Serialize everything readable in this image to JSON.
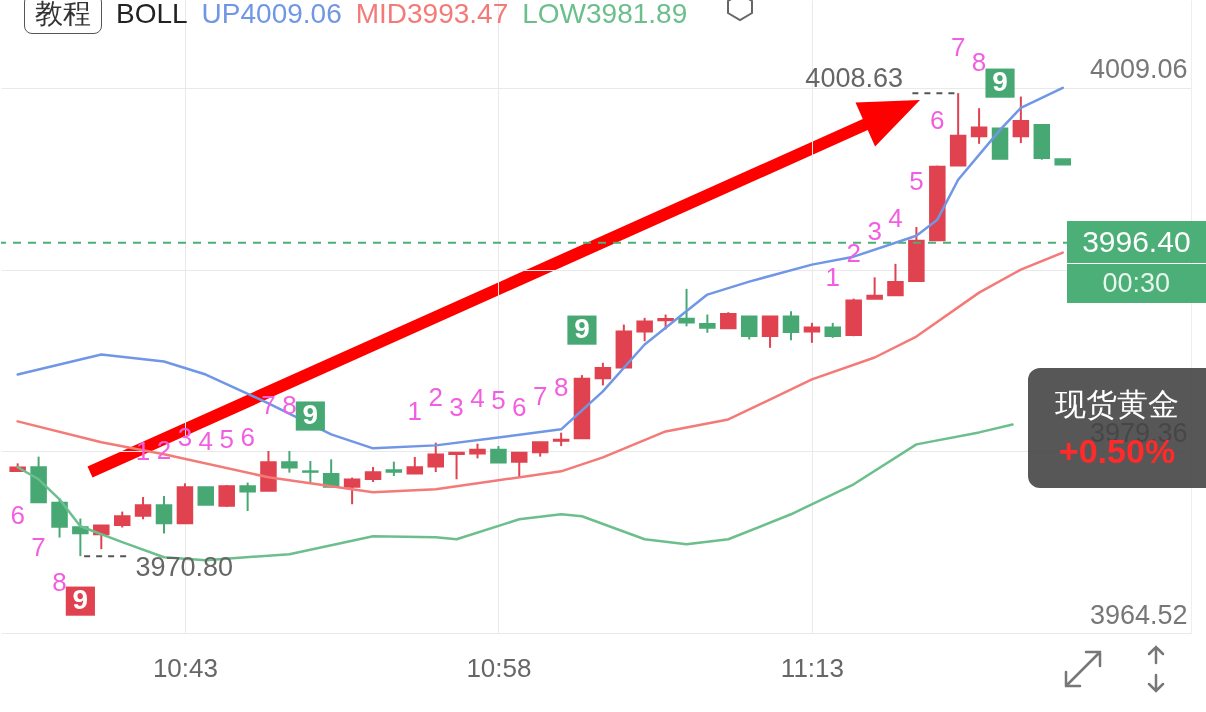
{
  "chart_data": {
    "type": "candlestick",
    "legend_title": "BOLL",
    "grid": true,
    "x": [
      10.5833,
      10.6,
      10.6167,
      10.6333,
      10.65,
      10.6667,
      10.6833,
      10.7,
      10.7167,
      10.7333,
      10.75,
      10.7667,
      10.7833,
      10.8,
      10.8167,
      10.8333,
      10.85,
      10.8667,
      10.8833,
      10.9,
      10.9167,
      10.9333,
      10.95,
      10.9667,
      10.9833,
      11,
      11.0167,
      11.0333,
      11.05,
      11.0667,
      11.0833,
      11.1,
      11.1167,
      11.1333,
      11.15,
      11.1667,
      11.1833,
      11.2,
      11.2167,
      11.2333,
      11.25,
      11.2667,
      11.2833,
      11.3,
      11.3167,
      11.3333,
      11.35,
      11.3667,
      11.3833,
      11.4,
      11.4167
    ],
    "ohlc": [
      [
        3977.73,
        3978.38,
        3977.73,
        3978.06
      ],
      [
        3978.08,
        3978.93,
        3975.18,
        3975.18
      ],
      [
        3975.18,
        3975.53,
        3972.32,
        3973.19
      ],
      [
        3973.19,
        3973.87,
        3970.8,
        3972.65
      ],
      [
        3972.56,
        3973.32,
        3971.37,
        3973.32
      ],
      [
        3973.32,
        3974.44,
        3973.14,
        3974.08
      ],
      [
        3974.08,
        3975.63,
        3973.81,
        3974.98
      ],
      [
        3974.98,
        3975.71,
        3972.65,
        3973.46
      ],
      [
        3973.46,
        3976.75,
        3973.46,
        3976.45
      ],
      [
        3976.45,
        3976.45,
        3974.98,
        3974.98
      ],
      [
        3974.9,
        3976.61,
        3974.82,
        3976.53
      ],
      [
        3976.53,
        3976.81,
        3974.49,
        3976.07
      ],
      [
        3976.12,
        3979.39,
        3976.12,
        3978.49
      ],
      [
        3978.49,
        3979.39,
        3977.62,
        3978.03
      ],
      [
        3977.75,
        3978.57,
        3976.75,
        3977.67
      ],
      [
        3977.54,
        3978.71,
        3976.45,
        3976.45
      ],
      [
        3976.45,
        3977.22,
        3975.04,
        3977.08
      ],
      [
        3977.08,
        3978.08,
        3976.86,
        3977.67
      ],
      [
        3977.84,
        3978.52,
        3977.35,
        3977.67
      ],
      [
        3977.54,
        3978.9,
        3977.54,
        3978.08
      ],
      [
        3978.11,
        3980.07,
        3977.67,
        3979.12
      ],
      [
        3979.12,
        3979.26,
        3977.08,
        3979.26
      ],
      [
        3979.17,
        3979.99,
        3978.79,
        3979.52
      ],
      [
        3979.52,
        3979.79,
        3978.44,
        3978.44
      ],
      [
        3978.49,
        3979.26,
        3977.22,
        3979.26
      ],
      [
        3979.26,
        3980.12,
        3978.93,
        3980.12
      ],
      [
        3980.2,
        3980.89,
        3979.79,
        3980.34
      ],
      [
        3980.42,
        3985.59,
        3980.42,
        3985.32
      ],
      [
        3985.32,
        3986.6,
        3984.75,
        3986.19
      ],
      [
        3986.19,
        3989.72,
        3986.19,
        3989.18
      ],
      [
        3989.13,
        3990.27,
        3988.36,
        3989.99
      ],
      [
        3990.05,
        3990.54,
        3989.32,
        3990.19
      ],
      [
        3990.21,
        3992.64,
        3989.58,
        3989.86
      ],
      [
        3989.78,
        3990.54,
        3989.05,
        3989.45
      ],
      [
        3989.4,
        3990.73,
        3989.4,
        3990.6
      ],
      [
        3990.4,
        3990.4,
        3988.5,
        3988.77
      ],
      [
        3988.77,
        3990.4,
        3987.82,
        3990.4
      ],
      [
        3990.4,
        3990.81,
        3988.44,
        3989.1
      ],
      [
        3989.13,
        3989.86,
        3988.23,
        3989.5
      ],
      [
        3989.5,
        3989.86,
        3988.64,
        3988.77
      ],
      [
        3988.85,
        3991.84,
        3988.77,
        3991.71
      ],
      [
        3991.82,
        3993.58,
        3991.82,
        3992.09
      ],
      [
        3992.09,
        3994.68,
        3992.09,
        3993.21
      ],
      [
        3993.26,
        3997.69,
        3993.26,
        3996.58
      ],
      [
        3996.58,
        4002.7,
        3996.58,
        4002.64
      ],
      [
        4002.7,
        4008.63,
        4002.7,
        4005.17
      ],
      [
        4005.09,
        4007.4,
        4004.49,
        4005.85
      ],
      [
        4005.77,
        4005.77,
        4003.24,
        4003.24
      ],
      [
        4005.09,
        4008.35,
        4004.55,
        4006.37
      ],
      [
        4006.04,
        4006.04,
        4003.19,
        4003.32
      ],
      [
        4003.24,
        4003.24,
        4002.78,
        4002.78
      ]
    ],
    "colors": [
      "#e0424f",
      "#47a874",
      "#47a874",
      "#47a874",
      "#e0424f",
      "#e0424f",
      "#e0424f",
      "#47a874",
      "#e0424f",
      "#47a874",
      "#e0424f",
      "#47a874",
      "#e0424f",
      "#47a874",
      "#47a874",
      "#47a874",
      "#e0424f",
      "#e0424f",
      "#47a874",
      "#e0424f",
      "#e0424f",
      "#e0424f",
      "#e0424f",
      "#47a874",
      "#e0424f",
      "#e0424f",
      "#e0424f",
      "#e0424f",
      "#e0424f",
      "#e0424f",
      "#e0424f",
      "#e0424f",
      "#47a874",
      "#47a874",
      "#e0424f",
      "#47a874",
      "#e0424f",
      "#47a874",
      "#e0424f",
      "#47a874",
      "#e0424f",
      "#e0424f",
      "#e0424f",
      "#e0424f",
      "#e0424f",
      "#e0424f",
      "#e0424f",
      "#47a874",
      "#e0424f",
      "#47a874",
      "#47a874"
    ],
    "xlim": [
      10.574,
      11.515
    ],
    "xticks": [
      {
        "value": 10.7167,
        "label": "10:43"
      },
      {
        "value": 10.9667,
        "label": "10:58"
      },
      {
        "value": 11.2167,
        "label": "11:13"
      }
    ],
    "ylim": [
      3964.52,
      4016.24
    ],
    "yticks": [
      3964.52,
      3979.36,
      {
        "value": 3994.21,
        "label": null
      },
      4009.06
    ],
    "ref_lines": [
      {
        "axis": "y",
        "value": 3996.4,
        "label": "3996.40",
        "color": "#4caf78",
        "line_style": "dashed"
      }
    ],
    "series": [
      {
        "name": "UP4009.06",
        "type": "line",
        "color": "#7096e6",
        "x": [
          10.5833,
          10.65,
          10.7,
          10.7333,
          10.7833,
          10.8333,
          10.8667,
          10.9167,
          10.9667,
          11.0167,
          11.05,
          11.0833,
          11.1333,
          11.1667,
          11.2167,
          11.25,
          11.3,
          11.3167,
          11.3333,
          11.3667,
          11.3833,
          11.4167
        ],
        "values": [
          3985.64,
          3987.28,
          3986.7,
          3985.64,
          3983.28,
          3980.75,
          3979.61,
          3979.85,
          3980.5,
          3981.16,
          3984.26,
          3988.09,
          3992.17,
          3993.23,
          3994.62,
          3995.27,
          3996.98,
          3998.29,
          4001.55,
          4005.63,
          4007.43,
          4009.06
        ]
      },
      {
        "name": "MID3993.47",
        "type": "line",
        "color": "#f47a78",
        "x": [
          10.5833,
          10.65,
          10.7,
          10.7833,
          10.8667,
          10.9167,
          10.9667,
          11.0167,
          11.05,
          11.1,
          11.15,
          11.2167,
          11.2667,
          11.3,
          11.35,
          11.3833,
          11.4167
        ],
        "values": [
          3981.81,
          3980.1,
          3979.12,
          3977.24,
          3976.02,
          3976.26,
          3977,
          3977.73,
          3978.87,
          3980.99,
          3981.97,
          3985.24,
          3987.03,
          3988.74,
          3992.33,
          3994.21,
          3995.6
        ]
      },
      {
        "name": "LOW3981.89",
        "type": "line",
        "color": "#6cbf8c",
        "x": [
          10.5833,
          10.6,
          10.6167,
          10.6333,
          10.6667,
          10.7,
          10.7333,
          10.8,
          10.8667,
          10.9167,
          10.9333,
          10.9833,
          11.0167,
          11.0333,
          11.0833,
          11.1167,
          11.15,
          11.2,
          11.25,
          11.3,
          11.35,
          11.3767
        ],
        "values": [
          3978.06,
          3977.08,
          3975.44,
          3973.24,
          3971.94,
          3970.71,
          3970.47,
          3970.96,
          3972.43,
          3972.34,
          3972.18,
          3973.81,
          3974.22,
          3974.06,
          3972.18,
          3971.77,
          3972.18,
          3974.22,
          3976.67,
          3979.93,
          3980.91,
          3981.56
        ]
      }
    ],
    "annotations": [
      "教程",
      "00:30",
      "现货黄金",
      "+0.50%",
      {
        "text": "4008.63",
        "x": 11.3333,
        "y": 4008.63
      },
      {
        "text": "3970.80",
        "x": 10.6333,
        "y": 3970.8
      },
      {
        "text": "6",
        "x": 10.5833,
        "y": 3977.73
      },
      {
        "text": "7",
        "x": 10.6,
        "y": 3975.18
      },
      {
        "text": "8",
        "x": 10.6167,
        "y": 3972.32
      },
      {
        "text": "9",
        "x": 10.6333,
        "y": 3970.8
      },
      {
        "text": "1",
        "x": 10.6833,
        "y": 3975.63
      },
      {
        "text": "2",
        "x": 10.7,
        "y": 3975.71
      },
      {
        "text": "3",
        "x": 10.7167,
        "y": 3976.75
      },
      {
        "text": "4",
        "x": 10.7333,
        "y": 3976.45
      },
      {
        "text": "5",
        "x": 10.75,
        "y": 3976.61
      },
      {
        "text": "6",
        "x": 10.7667,
        "y": 3976.81
      },
      {
        "text": "7",
        "x": 10.7833,
        "y": 3979.39
      },
      {
        "text": "8",
        "x": 10.8,
        "y": 3979.39
      },
      {
        "text": "9",
        "x": 10.8167,
        "y": 3978.57
      },
      {
        "text": "1",
        "x": 10.9,
        "y": 3978.9
      },
      {
        "text": "2",
        "x": 10.9167,
        "y": 3980.07
      },
      {
        "text": "3",
        "x": 10.9333,
        "y": 3979.26
      },
      {
        "text": "4",
        "x": 10.95,
        "y": 3979.99
      },
      {
        "text": "5",
        "x": 10.9667,
        "y": 3979.79
      },
      {
        "text": "6",
        "x": 10.9833,
        "y": 3979.26
      },
      {
        "text": "7",
        "x": 11,
        "y": 3980.12
      },
      {
        "text": "8",
        "x": 11.0167,
        "y": 3980.89
      },
      {
        "text": "9",
        "x": 11.0333,
        "y": 3985.59
      },
      {
        "text": "1",
        "x": 11.2333,
        "y": 3989.86
      },
      {
        "text": "2",
        "x": 11.25,
        "y": 3991.84
      },
      {
        "text": "3",
        "x": 11.2667,
        "y": 3993.58
      },
      {
        "text": "4",
        "x": 11.2833,
        "y": 3994.68
      },
      {
        "text": "5",
        "x": 11.3,
        "y": 3997.69
      },
      {
        "text": "6",
        "x": 11.3167,
        "y": 4002.7
      },
      {
        "text": "7",
        "x": 11.3333,
        "y": 4008.63
      },
      {
        "text": "8",
        "x": 11.35,
        "y": 4007.4
      },
      {
        "text": "9",
        "x": 11.3667,
        "y": 4005.77
      }
    ]
  }
}
